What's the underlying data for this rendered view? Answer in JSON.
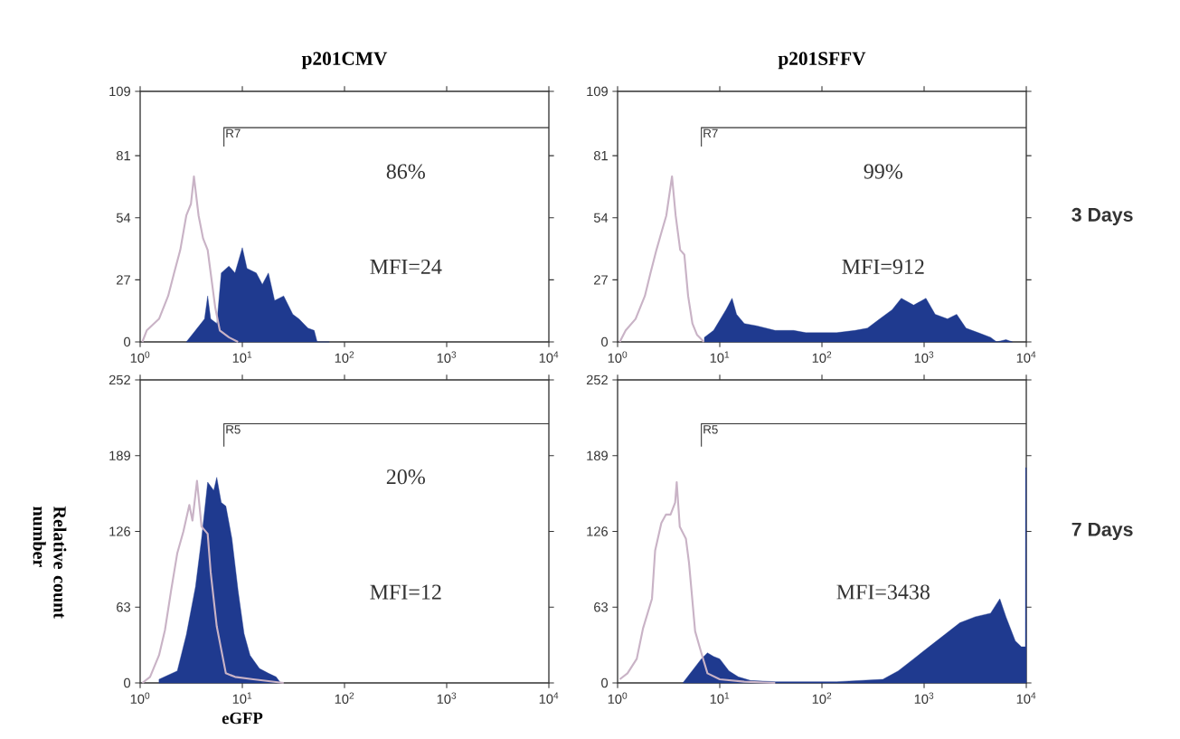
{
  "chart_data": [
    {
      "type": "area",
      "title": "p201CMV",
      "log": "x",
      "xlim": [
        1,
        10000
      ],
      "ylim": [
        0,
        109
      ],
      "xticks": [
        {
          "value": 1,
          "label": "10$^{0}$"
        },
        {
          "value": 10,
          "label": "10$^{1}$"
        },
        {
          "value": 100,
          "label": "10$^{2}$"
        },
        {
          "value": 1000,
          "label": "10$^{3}$"
        },
        {
          "value": 10000,
          "label": "10$^{4}$"
        }
      ],
      "yticks": [
        0,
        27,
        54,
        81,
        109
      ],
      "series": [
        {
          "color": "#1f3a8f",
          "x": [
            2.83,
            3.48,
            4.27,
            4.58,
            4.9,
            5.63,
            6.22,
            7.39,
            8.48,
            10,
            11.1,
            13.7,
            15.7,
            18,
            20.7,
            25.4,
            31.2,
            35.8,
            43.9,
            50.5,
            54,
            71
          ],
          "values": [
            0,
            5,
            10,
            20,
            10,
            8,
            30,
            33,
            30,
            41,
            32,
            30,
            25,
            30,
            18,
            20,
            12,
            10,
            6,
            5,
            0,
            0
          ]
        },
        {
          "type": "line",
          "color": "#c9b3c6",
          "x": [
            1.05,
            1.16,
            1.53,
            1.88,
            2.15,
            2.47,
            2.83,
            3.14,
            3.36,
            3.73,
            4.13,
            4.58,
            4.9,
            5.43,
            6.02,
            7.39,
            9.08
          ],
          "values": [
            0,
            5,
            10,
            20,
            30,
            40,
            55,
            60,
            72,
            55,
            45,
            40,
            30,
            15,
            5,
            2,
            0
          ]
        }
      ],
      "annotations": [
        "R7",
        "86%",
        "MFI=24"
      ]
    },
    {
      "type": "area",
      "title": "p201SFFV",
      "y2label": "3 Days",
      "log": "x",
      "xlim": [
        1,
        10000
      ],
      "ylim": [
        0,
        109
      ],
      "xticks": [
        {
          "value": 1,
          "label": "10$^{0}$"
        },
        {
          "value": 10,
          "label": "10$^{1}$"
        },
        {
          "value": 100,
          "label": "10$^{2}$"
        },
        {
          "value": 1000,
          "label": "10$^{3}$"
        },
        {
          "value": 10000,
          "label": "10$^{4}$"
        }
      ],
      "yticks": [
        0,
        27,
        54,
        81,
        109
      ],
      "series": [
        {
          "color": "#1f3a8f",
          "x": [
            7.07,
            8.7,
            11.5,
            13.2,
            14.6,
            17.4,
            23,
            34.8,
            52.8,
            69.7,
            98.6,
            139,
            211,
            279,
            368,
            486,
            598,
            790,
            1042,
            1283,
            1694,
            2084,
            2570,
            3390,
            4470,
            5130,
            6330,
            7300
          ],
          "values": [
            2,
            5,
            14,
            19,
            12,
            8,
            7,
            5,
            5,
            4,
            4,
            4,
            5,
            6,
            10,
            14,
            19,
            16,
            19,
            12,
            10,
            12,
            6,
            4,
            2,
            0,
            1,
            0
          ]
        },
        {
          "type": "line",
          "color": "#c9b3c6",
          "x": [
            1.05,
            1.2,
            1.5,
            1.85,
            2.1,
            2.4,
            2.7,
            3.0,
            3.41,
            3.7,
            4.1,
            4.5,
            4.9,
            5.4,
            6.0,
            7.0
          ],
          "values": [
            0,
            5,
            10,
            20,
            30,
            40,
            48,
            55,
            72,
            55,
            40,
            38,
            20,
            8,
            3,
            0
          ]
        }
      ],
      "annotations": [
        "R7",
        "99%",
        "MFI=912"
      ]
    },
    {
      "type": "area",
      "xlabel": "eGFP",
      "ylabel": "Relative count number",
      "log": "x",
      "xlim": [
        1,
        10000
      ],
      "ylim": [
        0,
        252
      ],
      "xticks": [
        {
          "value": 1,
          "label": "10$^{0}$"
        },
        {
          "value": 10,
          "label": "10$^{1}$"
        },
        {
          "value": 100,
          "label": "10$^{2}$"
        },
        {
          "value": 1000,
          "label": "10$^{3}$"
        },
        {
          "value": 10000,
          "label": "10$^{4}$"
        }
      ],
      "yticks": [
        0,
        63,
        126,
        189,
        252
      ],
      "series": [
        {
          "color": "#1f3a8f",
          "x": [
            1.53,
            2.31,
            2.83,
            3.48,
            3.99,
            4.58,
            5.25,
            5.62,
            6.22,
            6.9,
            7.91,
            9.08,
            10.4,
            11.9,
            14.7,
            18,
            21.4,
            23.7
          ],
          "values": [
            3,
            10,
            40,
            80,
            120,
            167,
            160,
            171,
            150,
            147,
            120,
            77,
            41,
            23,
            12,
            8,
            5,
            0
          ]
        },
        {
          "type": "line",
          "color": "#c9b3c6",
          "x": [
            1.05,
            1.25,
            1.53,
            1.75,
            2.01,
            2.31,
            2.65,
            3.03,
            3.25,
            3.6,
            3.99,
            4.58,
            4.9,
            5.62,
            6.9,
            8.49,
            12.8,
            25.4
          ],
          "values": [
            0,
            5,
            23,
            44,
            77,
            108,
            126,
            148,
            135,
            168,
            130,
            124,
            92,
            47,
            8,
            5,
            3,
            0
          ]
        }
      ],
      "annotations": [
        "R5",
        "20%",
        "MFI=12"
      ]
    },
    {
      "type": "area",
      "y2label": "7 Days",
      "log": "x",
      "xlim": [
        1,
        10000
      ],
      "ylim": [
        0,
        252
      ],
      "xticks": [
        {
          "value": 1,
          "label": "10$^{0}$"
        },
        {
          "value": 10,
          "label": "10$^{1}$"
        },
        {
          "value": 100,
          "label": "10$^{2}$"
        },
        {
          "value": 1000,
          "label": "10$^{3}$"
        },
        {
          "value": 10000,
          "label": "10$^{4}$"
        }
      ],
      "yticks": [
        0,
        63,
        126,
        189,
        252
      ],
      "series": [
        {
          "color": "#1f3a8f",
          "x": [
            4.35,
            5.36,
            6.6,
            7.58,
            8.7,
            10,
            12.3,
            15.2,
            20,
            34.9,
            139,
            395,
            558,
            790,
            1117,
            1581,
            2236,
            3162,
            4476,
            5508,
            6324,
            7798,
            8954,
            9800,
            9850,
            10000
          ],
          "values": [
            0,
            10,
            20,
            25,
            22,
            20,
            10,
            5,
            2,
            1,
            1,
            3,
            10,
            20,
            30,
            40,
            50,
            55,
            58,
            70,
            55,
            35,
            30,
            30,
            179,
            179
          ]
        },
        {
          "type": "line",
          "color": "#c9b3c6",
          "x": [
            1.05,
            1.25,
            1.54,
            1.77,
            2.17,
            2.33,
            2.68,
            2.97,
            3.3,
            3.66,
            3.79,
            4.06,
            4.66,
            5.0,
            5.74,
            6.6,
            7.58,
            10,
            17.4,
            34.9
          ],
          "values": [
            3,
            8,
            20,
            45,
            70,
            110,
            133,
            140,
            140,
            150,
            167,
            130,
            120,
            100,
            43,
            25,
            8,
            3,
            1,
            0
          ]
        }
      ],
      "annotations": [
        "R5",
        "MFI=3438"
      ]
    }
  ]
}
